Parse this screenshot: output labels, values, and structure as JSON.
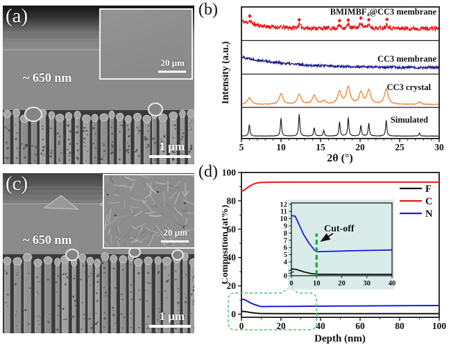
{
  "panels": {
    "a": {
      "label": "(a)",
      "annotation": "~ 650 nm",
      "scale_bar": "1 μm",
      "inset": {
        "scale_bar": "20 μm"
      }
    },
    "b": {
      "label": "(b)"
    },
    "c": {
      "label": "(c)",
      "annotation": "~ 650 nm",
      "scale_bar": "1 μm",
      "inset": {
        "scale_bar": "20 μm"
      }
    },
    "d": {
      "label": "(d)"
    }
  },
  "chart_data": [
    {
      "id": "xrd",
      "type": "line",
      "title": "",
      "xlabel": "2θ (°)",
      "ylabel": "Intensity (a.u.)",
      "xlim": [
        5,
        30
      ],
      "xticks": [
        5,
        10,
        15,
        20,
        25,
        30
      ],
      "stacked_panels": true,
      "grid": false,
      "series": [
        {
          "name": "BMIMBF₄@CC3 membrane",
          "color": "#ee1414",
          "baseline": 0.4,
          "decay": 0.28,
          "tau": 2.5,
          "noise": 0.085,
          "peak_width": 0.18,
          "peaks": [
            [
              6.05,
              0.12
            ],
            [
              12.3,
              0.14
            ],
            [
              17.4,
              0.12
            ],
            [
              18.5,
              0.14
            ],
            [
              20.1,
              0.22
            ],
            [
              21.1,
              0.15
            ],
            [
              23.4,
              0.17
            ]
          ],
          "marker": "diamond",
          "markers": [
            6.05,
            12.3,
            17.4,
            18.5,
            20.1,
            21.1,
            23.4
          ]
        },
        {
          "name": "CC3 membrane",
          "color": "#1c1c8f",
          "baseline": 0.18,
          "decay": 0.42,
          "tau": 6,
          "noise": 0.05,
          "peak_width": 0.2,
          "peaks": [],
          "markers": []
        },
        {
          "name": "CC3 crystal",
          "color": "#f08232",
          "baseline": 0.04,
          "decay": 0.0,
          "tau": 3,
          "noise": 0.012,
          "peak_width": 0.28,
          "peaks": [
            [
              6.0,
              0.25
            ],
            [
              10.0,
              0.38
            ],
            [
              12.3,
              0.36
            ],
            [
              14.2,
              0.32
            ],
            [
              15.4,
              0.12
            ],
            [
              17.4,
              0.45
            ],
            [
              18.5,
              0.62
            ],
            [
              20.1,
              0.42
            ],
            [
              21.1,
              0.5
            ],
            [
              23.3,
              0.55
            ],
            [
              27.5,
              0.08
            ]
          ],
          "markers": []
        },
        {
          "name": "Simulated",
          "color": "#111111",
          "baseline": 0.03,
          "decay": 0.0,
          "tau": 3,
          "noise": 0.007,
          "peak_width": 0.09,
          "peaks": [
            [
              6.0,
              0.45
            ],
            [
              10.0,
              0.7
            ],
            [
              12.3,
              0.85
            ],
            [
              14.2,
              0.32
            ],
            [
              15.4,
              0.22
            ],
            [
              17.4,
              0.55
            ],
            [
              18.5,
              0.72
            ],
            [
              20.1,
              0.42
            ],
            [
              21.1,
              0.5
            ],
            [
              23.3,
              0.62
            ],
            [
              27.5,
              0.12
            ]
          ],
          "markers": []
        }
      ]
    },
    {
      "id": "depth-profile",
      "type": "line",
      "title": "",
      "xlabel": "Depth (nm)",
      "ylabel": "Composition (at%)",
      "xlim": [
        0,
        100
      ],
      "ylim": [
        0,
        100
      ],
      "xticks": [
        0,
        20,
        40,
        60,
        80,
        100
      ],
      "yticks": [
        0,
        20,
        40,
        60,
        80,
        100
      ],
      "grid": false,
      "legend": [
        {
          "name": "F",
          "color": "#111111"
        },
        {
          "name": "C",
          "color": "#ee1414"
        },
        {
          "name": "N",
          "color": "#1a1ae0"
        }
      ],
      "series": [
        {
          "name": "F",
          "color": "#111111",
          "points": [
            [
              0,
              2.0
            ],
            [
              2,
              1.8
            ],
            [
              5,
              1.1
            ],
            [
              8,
              0.6
            ],
            [
              10,
              0.45
            ],
            [
              20,
              0.4
            ],
            [
              40,
              0.4
            ],
            [
              100,
              0.4
            ]
          ]
        },
        {
          "name": "C",
          "color": "#ee1414",
          "points": [
            [
              0,
              87
            ],
            [
              1,
              87.3
            ],
            [
              2,
              88.2
            ],
            [
              4,
              90.3
            ],
            [
              6,
              91.8
            ],
            [
              8,
              92.6
            ],
            [
              10,
              93
            ],
            [
              20,
              93.2
            ],
            [
              60,
              93.2
            ],
            [
              100,
              93.2
            ]
          ]
        },
        {
          "name": "N",
          "color": "#1a1ae0",
          "points": [
            [
              0,
              10.4
            ],
            [
              1.5,
              10.35
            ],
            [
              3,
              9.2
            ],
            [
              5,
              7.7
            ],
            [
              7,
              6.6
            ],
            [
              9,
              5.7
            ],
            [
              10,
              5.4
            ],
            [
              15,
              5.45
            ],
            [
              25,
              5.55
            ],
            [
              40,
              5.65
            ],
            [
              60,
              5.8
            ],
            [
              80,
              6.0
            ],
            [
              100,
              6.1
            ]
          ]
        }
      ],
      "inset": {
        "bg": "#d9ecea",
        "xlim": [
          0,
          40
        ],
        "xticks": [
          0,
          10,
          20,
          30,
          40
        ],
        "yticks": [
          0,
          4,
          5,
          6,
          7,
          8,
          9,
          10,
          11,
          12
        ],
        "axis_break": true,
        "cutoff_x": 10,
        "cutoff_label": "Cut-off",
        "cutoff_color": "#12a43b"
      },
      "highlight_box_color": "#5ecb82"
    }
  ]
}
